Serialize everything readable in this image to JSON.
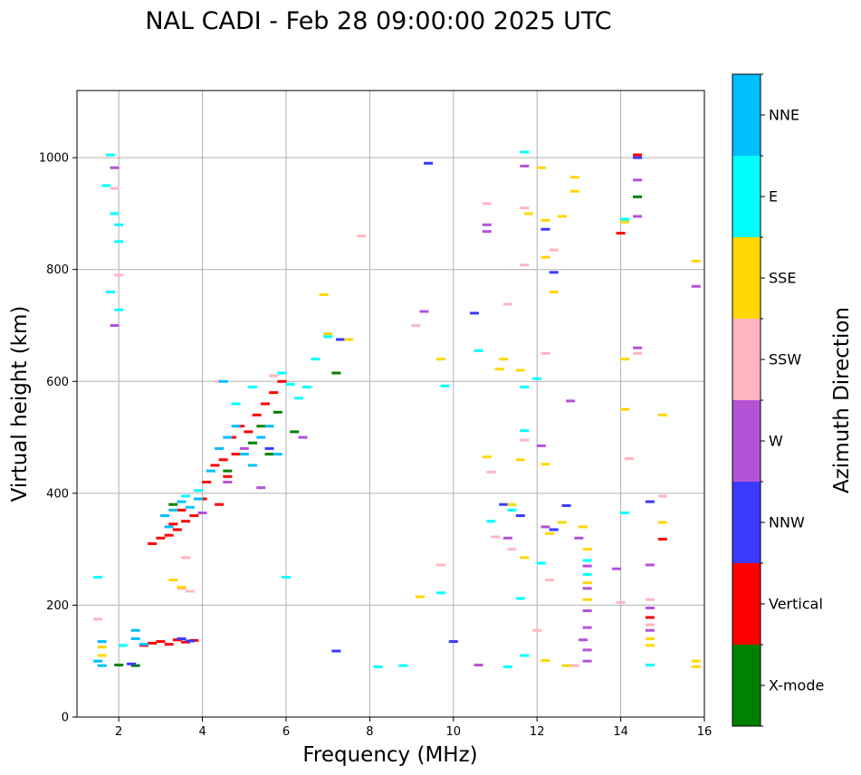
{
  "chart_data": {
    "type": "scatter",
    "title": "NAL CADI - Feb 28 09:00:00 2025 UTC",
    "xlabel": "Frequency (MHz)",
    "ylabel": "Virtual height (km)",
    "xlim": [
      1,
      16
    ],
    "ylim": [
      0,
      1120
    ],
    "xticks": [
      2,
      4,
      6,
      8,
      10,
      12,
      14,
      16
    ],
    "yticks": [
      0,
      200,
      400,
      600,
      800,
      1000
    ],
    "grid": true,
    "colorbar": {
      "label": "Azimuth Direction",
      "categories": [
        {
          "name": "X-mode",
          "color": "#008000"
        },
        {
          "name": "Vertical",
          "color": "#ff0000"
        },
        {
          "name": "NNW",
          "color": "#3a3aff"
        },
        {
          "name": "W",
          "color": "#b452d6"
        },
        {
          "name": "SSW",
          "color": "#ffb6c1"
        },
        {
          "name": "SSE",
          "color": "#ffd700"
        },
        {
          "name": "E",
          "color": "#00ffff"
        },
        {
          "name": "NNE",
          "color": "#00bfff"
        }
      ]
    },
    "series": [
      {
        "name": "X-mode",
        "points": [
          [
            2.0,
            93
          ],
          [
            2.4,
            92
          ],
          [
            5.2,
            490
          ],
          [
            5.4,
            520
          ],
          [
            5.6,
            470
          ],
          [
            5.8,
            545
          ],
          [
            6.2,
            510
          ],
          [
            3.3,
            380
          ],
          [
            4.6,
            440
          ],
          [
            7.2,
            615
          ],
          [
            14.4,
            930
          ]
        ]
      },
      {
        "name": "Vertical",
        "points": [
          [
            2.6,
            128
          ],
          [
            2.8,
            132
          ],
          [
            3.0,
            135
          ],
          [
            3.2,
            130
          ],
          [
            3.4,
            138
          ],
          [
            3.6,
            134
          ],
          [
            3.8,
            137
          ],
          [
            2.8,
            310
          ],
          [
            3.0,
            320
          ],
          [
            3.2,
            325
          ],
          [
            3.4,
            335
          ],
          [
            3.6,
            350
          ],
          [
            3.8,
            360
          ],
          [
            3.3,
            345
          ],
          [
            3.5,
            370
          ],
          [
            4.0,
            390
          ],
          [
            4.1,
            420
          ],
          [
            4.3,
            450
          ],
          [
            4.5,
            460
          ],
          [
            4.7,
            500
          ],
          [
            4.9,
            520
          ],
          [
            5.1,
            510
          ],
          [
            5.3,
            540
          ],
          [
            5.5,
            560
          ],
          [
            5.7,
            580
          ],
          [
            5.9,
            600
          ],
          [
            4.4,
            380
          ],
          [
            4.6,
            430
          ],
          [
            4.8,
            470
          ],
          [
            14.0,
            865
          ],
          [
            14.4,
            1005
          ],
          [
            14.7,
            178
          ],
          [
            15.0,
            318
          ]
        ]
      },
      {
        "name": "NNW",
        "points": [
          [
            2.3,
            95
          ],
          [
            3.5,
            140
          ],
          [
            3.7,
            136
          ],
          [
            9.4,
            990
          ],
          [
            10.5,
            722
          ],
          [
            10.0,
            135
          ],
          [
            7.2,
            118
          ],
          [
            11.2,
            380
          ],
          [
            11.6,
            360
          ],
          [
            12.2,
            872
          ],
          [
            12.4,
            795
          ],
          [
            12.4,
            335
          ],
          [
            12.7,
            378
          ],
          [
            14.4,
            1000
          ],
          [
            14.7,
            385
          ],
          [
            14.7,
            93
          ],
          [
            5.6,
            480
          ],
          [
            7.3,
            675
          ]
        ]
      },
      {
        "name": "W",
        "points": [
          [
            1.9,
            982
          ],
          [
            1.9,
            700
          ],
          [
            4.0,
            365
          ],
          [
            4.6,
            420
          ],
          [
            5.0,
            480
          ],
          [
            5.4,
            410
          ],
          [
            6.4,
            500
          ],
          [
            10.6,
            93
          ],
          [
            10.8,
            880
          ],
          [
            10.8,
            868
          ],
          [
            11.3,
            320
          ],
          [
            11.7,
            985
          ],
          [
            12.1,
            485
          ],
          [
            12.2,
            340
          ],
          [
            12.8,
            565
          ],
          [
            13.0,
            320
          ],
          [
            13.1,
            138
          ],
          [
            13.2,
            100
          ],
          [
            13.2,
            120
          ],
          [
            13.2,
            160
          ],
          [
            13.2,
            190
          ],
          [
            13.2,
            230
          ],
          [
            13.2,
            270
          ],
          [
            13.9,
            265
          ],
          [
            14.4,
            660
          ],
          [
            14.4,
            960
          ],
          [
            14.4,
            895
          ],
          [
            14.7,
            272
          ],
          [
            14.7,
            155
          ],
          [
            14.7,
            195
          ],
          [
            15.8,
            770
          ],
          [
            9.3,
            725
          ]
        ]
      },
      {
        "name": "SSW",
        "points": [
          [
            1.5,
            175
          ],
          [
            1.9,
            945
          ],
          [
            2.0,
            790
          ],
          [
            3.5,
            230
          ],
          [
            3.7,
            225
          ],
          [
            3.6,
            285
          ],
          [
            4.4,
            600
          ],
          [
            5.7,
            610
          ],
          [
            7.8,
            860
          ],
          [
            9.1,
            700
          ],
          [
            9.7,
            272
          ],
          [
            10.8,
            918
          ],
          [
            10.9,
            438
          ],
          [
            11.3,
            738
          ],
          [
            11.4,
            300
          ],
          [
            11.7,
            910
          ],
          [
            11.7,
            808
          ],
          [
            11.7,
            495
          ],
          [
            12.0,
            155
          ],
          [
            12.2,
            650
          ],
          [
            12.3,
            245
          ],
          [
            12.4,
            835
          ],
          [
            12.9,
            92
          ],
          [
            14.0,
            205
          ],
          [
            14.2,
            462
          ],
          [
            14.4,
            650
          ],
          [
            14.7,
            210
          ],
          [
            14.7,
            165
          ],
          [
            15.0,
            395
          ],
          [
            11.0,
            322
          ]
        ]
      },
      {
        "name": "SSE",
        "points": [
          [
            1.6,
            110
          ],
          [
            1.6,
            125
          ],
          [
            3.3,
            245
          ],
          [
            3.5,
            232
          ],
          [
            6.9,
            755
          ],
          [
            7.0,
            685
          ],
          [
            7.5,
            675
          ],
          [
            9.2,
            215
          ],
          [
            9.7,
            640
          ],
          [
            10.8,
            465
          ],
          [
            11.1,
            622
          ],
          [
            11.2,
            640
          ],
          [
            11.4,
            380
          ],
          [
            11.6,
            460
          ],
          [
            11.6,
            620
          ],
          [
            11.7,
            285
          ],
          [
            11.8,
            900
          ],
          [
            12.1,
            982
          ],
          [
            12.2,
            888
          ],
          [
            12.2,
            822
          ],
          [
            12.2,
            452
          ],
          [
            12.2,
            101
          ],
          [
            12.3,
            328
          ],
          [
            12.4,
            760
          ],
          [
            12.6,
            348
          ],
          [
            12.6,
            895
          ],
          [
            12.7,
            92
          ],
          [
            12.9,
            965
          ],
          [
            12.9,
            940
          ],
          [
            13.1,
            340
          ],
          [
            13.2,
            300
          ],
          [
            13.2,
            240
          ],
          [
            13.2,
            210
          ],
          [
            14.1,
            640
          ],
          [
            14.1,
            550
          ],
          [
            14.1,
            885
          ],
          [
            14.7,
            140
          ],
          [
            14.7,
            128
          ],
          [
            15.0,
            540
          ],
          [
            15.0,
            348
          ],
          [
            15.8,
            815
          ],
          [
            15.8,
            100
          ],
          [
            15.8,
            90
          ]
        ]
      },
      {
        "name": "E",
        "points": [
          [
            1.7,
            950
          ],
          [
            1.8,
            1005
          ],
          [
            1.8,
            760
          ],
          [
            1.9,
            900
          ],
          [
            2.0,
            880
          ],
          [
            2.0,
            850
          ],
          [
            2.0,
            728
          ],
          [
            2.1,
            128
          ],
          [
            3.6,
            395
          ],
          [
            3.9,
            405
          ],
          [
            4.8,
            560
          ],
          [
            5.2,
            590
          ],
          [
            5.9,
            615
          ],
          [
            6.1,
            595
          ],
          [
            6.3,
            570
          ],
          [
            6.5,
            590
          ],
          [
            6.7,
            640
          ],
          [
            7.0,
            680
          ],
          [
            8.2,
            90
          ],
          [
            8.8,
            92
          ],
          [
            9.7,
            222
          ],
          [
            9.8,
            592
          ],
          [
            10.6,
            655
          ],
          [
            10.9,
            350
          ],
          [
            11.3,
            90
          ],
          [
            11.4,
            370
          ],
          [
            11.6,
            212
          ],
          [
            11.7,
            1010
          ],
          [
            11.7,
            590
          ],
          [
            11.7,
            512
          ],
          [
            11.7,
            110
          ],
          [
            12.0,
            605
          ],
          [
            12.1,
            275
          ],
          [
            13.2,
            280
          ],
          [
            13.2,
            255
          ],
          [
            14.1,
            365
          ],
          [
            14.1,
            890
          ],
          [
            14.7,
            93
          ],
          [
            1.5,
            250
          ],
          [
            6.0,
            250
          ]
        ]
      },
      {
        "name": "NNE",
        "points": [
          [
            1.5,
            100
          ],
          [
            1.6,
            92
          ],
          [
            2.4,
            155
          ],
          [
            2.4,
            140
          ],
          [
            2.6,
            130
          ],
          [
            3.1,
            360
          ],
          [
            3.3,
            370
          ],
          [
            3.5,
            385
          ],
          [
            3.7,
            375
          ],
          [
            3.9,
            390
          ],
          [
            3.2,
            340
          ],
          [
            4.2,
            440
          ],
          [
            4.4,
            480
          ],
          [
            4.6,
            500
          ],
          [
            4.8,
            520
          ],
          [
            5.0,
            470
          ],
          [
            5.2,
            450
          ],
          [
            5.4,
            500
          ],
          [
            5.6,
            520
          ],
          [
            5.8,
            470
          ],
          [
            4.5,
            600
          ],
          [
            1.6,
            135
          ]
        ]
      }
    ]
  }
}
